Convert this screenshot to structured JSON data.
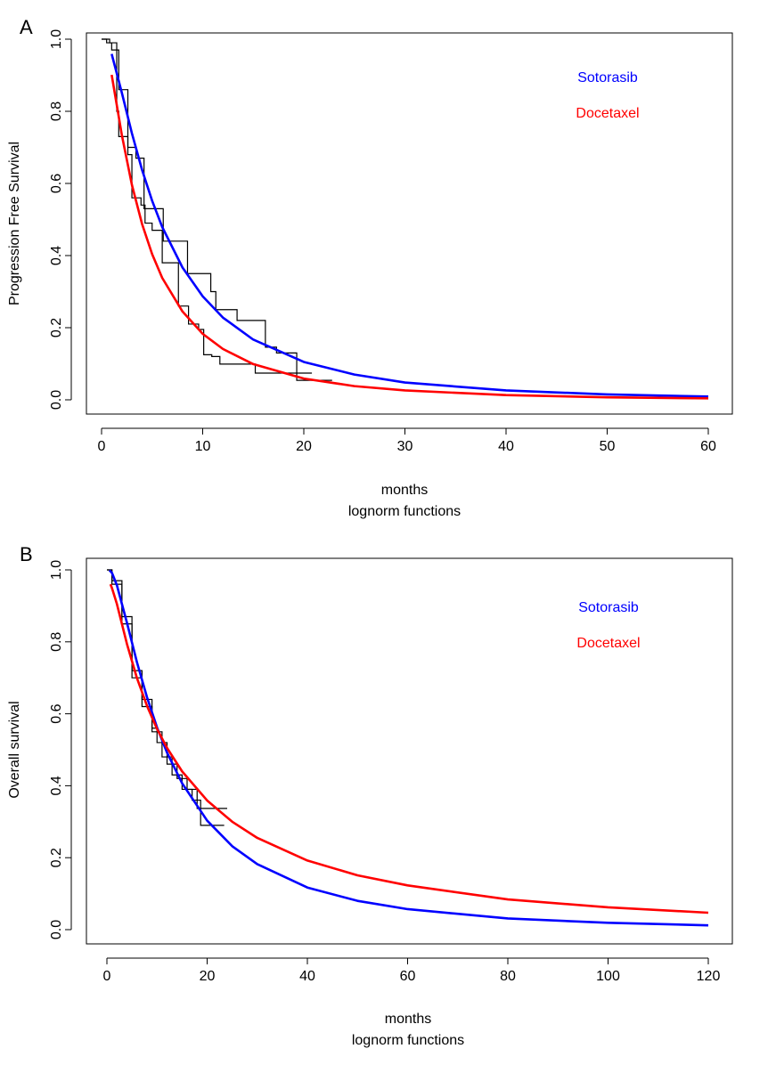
{
  "chart_data": [
    {
      "panel_label": "A",
      "type": "line",
      "xlabel": "months",
      "xlabel2": "lognorm functions",
      "ylabel": "Progression Free Survival",
      "xlim": [
        0,
        60
      ],
      "ylim": [
        0,
        1
      ],
      "xticks": [
        0,
        10,
        20,
        30,
        40,
        50,
        60
      ],
      "yticks": [
        "0.0",
        "0.2",
        "0.4",
        "0.6",
        "0.8",
        "1.0"
      ],
      "grid": false,
      "legend_position": "top-right",
      "series": [
        {
          "name": "Sotorasib",
          "color": "#0000ff",
          "kind": "fitted",
          "x": [
            1,
            2,
            3,
            4,
            5,
            6,
            8,
            10,
            12,
            15,
            20,
            25,
            30,
            40,
            50,
            60
          ],
          "y": [
            0.959,
            0.852,
            0.739,
            0.638,
            0.552,
            0.479,
            0.367,
            0.287,
            0.228,
            0.167,
            0.105,
            0.07,
            0.048,
            0.026,
            0.015,
            0.009
          ]
        },
        {
          "name": "Docetaxel",
          "color": "#ff0000",
          "kind": "fitted",
          "x": [
            1,
            2,
            3,
            4,
            5,
            6,
            8,
            10,
            12,
            15,
            20,
            25,
            30,
            40,
            50,
            60
          ],
          "y": [
            0.901,
            0.735,
            0.596,
            0.488,
            0.404,
            0.338,
            0.245,
            0.183,
            0.141,
            0.099,
            0.059,
            0.038,
            0.026,
            0.013,
            0.007,
            0.004
          ]
        }
      ],
      "km_curves": [
        {
          "color": "#000000",
          "x": [
            0,
            0.5,
            1,
            1.7,
            2.6,
            3.4,
            4.2,
            6.1,
            8.5,
            10.8,
            11.3,
            13.4,
            16.2,
            17.3,
            19.3,
            22.8
          ],
          "y": [
            1.0,
            0.99,
            0.97,
            0.86,
            0.7,
            0.67,
            0.53,
            0.44,
            0.35,
            0.3,
            0.25,
            0.22,
            0.146,
            0.13,
            0.054,
            0.054
          ]
        },
        {
          "color": "#000000",
          "x": [
            0,
            0.8,
            1.5,
            1.7,
            2.6,
            3.0,
            3.9,
            4.3,
            5.0,
            6.0,
            7.6,
            8.6,
            9.6,
            10.1,
            10.9,
            11.7,
            15.2,
            20.8
          ],
          "y": [
            1.0,
            0.99,
            0.8,
            0.73,
            0.68,
            0.56,
            0.54,
            0.49,
            0.47,
            0.38,
            0.26,
            0.21,
            0.195,
            0.125,
            0.12,
            0.099,
            0.074,
            0.074
          ]
        }
      ]
    },
    {
      "panel_label": "B",
      "type": "line",
      "xlabel": "months",
      "xlabel2": "lognorm functions",
      "ylabel": "Overall survival",
      "xlim": [
        0,
        120
      ],
      "ylim": [
        0,
        1
      ],
      "xticks": [
        0,
        20,
        40,
        60,
        80,
        100,
        120
      ],
      "yticks": [
        "0.0",
        "0.2",
        "0.4",
        "0.6",
        "0.8",
        "1.0"
      ],
      "grid": false,
      "legend_position": "top-right",
      "series": [
        {
          "name": "Sotorasib",
          "color": "#0000ff",
          "kind": "fitted",
          "x": [
            0.5,
            1,
            2,
            4,
            6,
            8,
            10,
            12,
            15,
            20,
            25,
            30,
            40,
            50,
            60,
            80,
            100,
            120
          ],
          "y": [
            0.999,
            0.992,
            0.957,
            0.853,
            0.743,
            0.646,
            0.562,
            0.492,
            0.407,
            0.303,
            0.232,
            0.182,
            0.117,
            0.08,
            0.057,
            0.031,
            0.019,
            0.012
          ]
        },
        {
          "name": "Docetaxel",
          "color": "#ff0000",
          "kind": "fitted",
          "x": [
            0.7,
            1,
            2,
            4,
            6,
            8,
            10,
            12,
            15,
            20,
            25,
            30,
            40,
            50,
            60,
            80,
            100,
            120
          ],
          "y": [
            0.96,
            0.95,
            0.905,
            0.794,
            0.699,
            0.622,
            0.558,
            0.505,
            0.44,
            0.359,
            0.3,
            0.255,
            0.192,
            0.151,
            0.123,
            0.084,
            0.062,
            0.047
          ]
        }
      ],
      "km_curves": [
        {
          "color": "#000000",
          "x": [
            0,
            1,
            3,
            5,
            7,
            9,
            10,
            12,
            14,
            16,
            18,
            24
          ],
          "y": [
            1.0,
            0.97,
            0.87,
            0.72,
            0.64,
            0.56,
            0.52,
            0.46,
            0.42,
            0.39,
            0.337,
            0.337
          ]
        },
        {
          "color": "#000000",
          "x": [
            0,
            1,
            3,
            5,
            7,
            9,
            11,
            13,
            15,
            17,
            18.7,
            23.4
          ],
          "y": [
            1.0,
            0.96,
            0.85,
            0.7,
            0.62,
            0.55,
            0.48,
            0.43,
            0.39,
            0.36,
            0.29,
            0.29
          ]
        }
      ]
    }
  ]
}
